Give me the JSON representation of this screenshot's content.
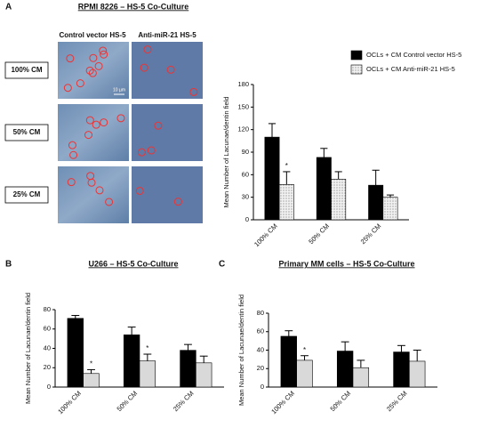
{
  "panel_labels": [
    "A",
    "B",
    "C"
  ],
  "images": {
    "columns": [
      "Control vector HS-5",
      "Anti-miR-21 HS-5"
    ],
    "rows": [
      "100% CM",
      "50% CM",
      "25% CM"
    ],
    "scale_bar": "10 µm"
  },
  "chart_data": [
    {
      "type": "bar",
      "title": "RPMI 8226 – HS-5 Co-Culture",
      "y_label": "Mean Number of Lacunae/dentin field",
      "categories": [
        "100% CM",
        "50% CM",
        "25% CM"
      ],
      "series": [
        {
          "name": "OCLs + CM  Control vector HS-5",
          "color": "#000000",
          "values": [
            110,
            83,
            46
          ],
          "errors": [
            18,
            12,
            20
          ],
          "significance": [
            null,
            null,
            null
          ]
        },
        {
          "name": "OCLs + CM Anti-miR-21 HS-5",
          "color": "#e6e6e6",
          "hatch": true,
          "values": [
            47,
            54,
            30
          ],
          "errors": [
            17,
            10,
            3
          ],
          "significance": [
            "*",
            null,
            null
          ]
        }
      ],
      "ylim": [
        0,
        180
      ],
      "yticks": [
        0,
        30,
        60,
        90,
        120,
        150,
        180
      ],
      "legend": "top-right"
    },
    {
      "type": "bar",
      "title": "U266 – HS-5 Co-Culture",
      "y_label": "Mean Number of Lacunae/dentin field",
      "categories": [
        "100% CM",
        "50% CM",
        "25% CM"
      ],
      "series": [
        {
          "color": "#000000",
          "values": [
            71,
            54,
            38
          ],
          "errors": [
            3,
            8,
            6
          ],
          "significance": [
            null,
            null,
            null
          ]
        },
        {
          "color": "#d9d9d9",
          "values": [
            14,
            27,
            25
          ],
          "errors": [
            4,
            7,
            7
          ],
          "significance": [
            "*",
            "*",
            null
          ]
        }
      ],
      "ylim": [
        0,
        80
      ],
      "yticks": [
        0,
        20,
        40,
        60,
        80
      ]
    },
    {
      "type": "bar",
      "title": "Primary MM cells – HS-5 Co-Culture",
      "y_label": "Mean Number of Lacunae/dentin field",
      "categories": [
        "100% CM",
        "50% CM",
        "25% CM"
      ],
      "series": [
        {
          "color": "#000000",
          "values": [
            55,
            39,
            38
          ],
          "errors": [
            6,
            10,
            7
          ],
          "significance": [
            null,
            null,
            null
          ]
        },
        {
          "color": "#d9d9d9",
          "values": [
            29,
            21,
            28
          ],
          "errors": [
            5,
            8,
            12
          ],
          "significance": [
            "*",
            null,
            null
          ]
        }
      ],
      "ylim": [
        0,
        80
      ],
      "yticks": [
        0,
        20,
        40,
        60,
        80
      ]
    }
  ]
}
